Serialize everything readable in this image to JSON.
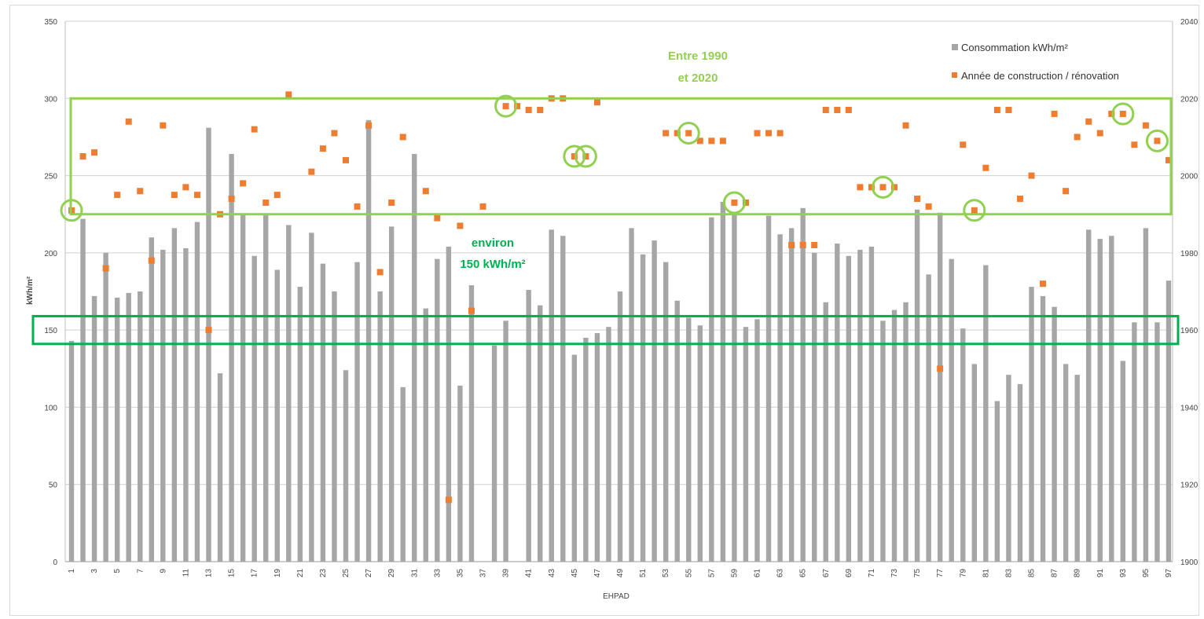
{
  "chart_data": {
    "type": "bar",
    "xlabel": "EHPAD",
    "ylabel": "kWh/m²",
    "ylim": [
      0,
      350
    ],
    "y2lim": [
      1900,
      2040
    ],
    "y_ticks": [
      0,
      50,
      100,
      150,
      200,
      250,
      300,
      350
    ],
    "y2_ticks": [
      1900,
      1920,
      1940,
      1960,
      1980,
      2000,
      2020,
      2040
    ],
    "x_tick_labels": [
      "1",
      "3",
      "5",
      "7",
      "9",
      "11",
      "13",
      "15",
      "17",
      "19",
      "21",
      "23",
      "25",
      "27",
      "29",
      "31",
      "33",
      "35",
      "37",
      "39",
      "41",
      "43",
      "45",
      "47",
      "49",
      "51",
      "53",
      "55",
      "57",
      "59",
      "61",
      "63",
      "65",
      "67",
      "69",
      "71",
      "73",
      "75",
      "77",
      "79",
      "81",
      "83",
      "85",
      "87",
      "89",
      "91",
      "93",
      "95",
      "97"
    ],
    "categories": [
      1,
      2,
      3,
      4,
      5,
      6,
      7,
      8,
      9,
      10,
      11,
      12,
      13,
      14,
      15,
      16,
      17,
      18,
      19,
      20,
      21,
      22,
      23,
      24,
      25,
      26,
      27,
      28,
      29,
      30,
      31,
      32,
      33,
      34,
      35,
      36,
      37,
      38,
      39,
      40,
      41,
      42,
      43,
      44,
      45,
      46,
      47,
      48,
      49,
      50,
      51,
      52,
      53,
      54,
      55,
      56,
      57,
      58,
      59,
      60,
      61,
      62,
      63,
      64,
      65,
      66,
      67,
      68,
      69,
      70,
      71,
      72,
      73,
      74,
      75,
      76,
      77,
      78,
      79,
      80,
      81,
      82,
      83,
      84,
      85,
      86,
      87,
      88,
      89,
      90,
      91,
      92,
      93,
      94,
      95,
      96,
      97
    ],
    "grid": true,
    "legend_position": "top-right",
    "series": [
      {
        "name": "Consommation  kWh/m²",
        "type": "bar",
        "axis": "left",
        "color": "#a6a6a6",
        "values": [
          143,
          222,
          172,
          200,
          171,
          174,
          175,
          210,
          202,
          216,
          203,
          220,
          281,
          122,
          264,
          225,
          198,
          225,
          189,
          218,
          178,
          213,
          193,
          175,
          124,
          194,
          286,
          175,
          217,
          113,
          264,
          164,
          196,
          204,
          114,
          179,
          0,
          140,
          156,
          0,
          176,
          166,
          215,
          211,
          134,
          145,
          148,
          152,
          175,
          216,
          199,
          208,
          194,
          169,
          158,
          153,
          223,
          233,
          226,
          152,
          157,
          224,
          212,
          216,
          229,
          200,
          168,
          206,
          198,
          202,
          204,
          156,
          163,
          168,
          228,
          186,
          226,
          196,
          151,
          128,
          192,
          104,
          121,
          115,
          178,
          172,
          165,
          128,
          121,
          215,
          209,
          211,
          130,
          155,
          216,
          155,
          182
        ]
      },
      {
        "name": "Année de construction / rénovation",
        "type": "scatter",
        "axis": "right",
        "color": "#ed7d31",
        "values": [
          1991,
          2005,
          2006,
          1976,
          1995,
          2014,
          1996,
          1978,
          2013,
          1995,
          1997,
          1995,
          1960,
          1990,
          1994,
          1998,
          2012,
          1993,
          1995,
          2021,
          null,
          2001,
          2007,
          2011,
          2004,
          1992,
          2013,
          1975,
          1993,
          2010,
          null,
          1996,
          1989,
          1916,
          1987,
          1965,
          1992,
          null,
          2018,
          2018,
          2017,
          2017,
          2020,
          2020,
          2005,
          2005,
          2019,
          null,
          null,
          null,
          null,
          null,
          2011,
          2011,
          2011,
          2009,
          2009,
          2009,
          1993,
          1993,
          2011,
          2011,
          2011,
          1982,
          1982,
          1982,
          2017,
          2017,
          2017,
          1997,
          1997,
          1997,
          1997,
          2013,
          1994,
          1992,
          1950,
          null,
          2008,
          1991,
          2002,
          2017,
          2017,
          1994,
          2000,
          1972,
          2016,
          1996,
          2010,
          2014,
          2011,
          2016,
          2016,
          2008,
          2013,
          2009,
          2004
        ]
      }
    ],
    "annotations": {
      "range_label_line1": "Entre 1990",
      "range_label_line2": "et 2020",
      "typical_label_line1": "environ",
      "typical_label_line2": "150 kWh/m²",
      "range_color": "#92d050",
      "typical_color": "#00b050",
      "circled_points": [
        1,
        39,
        46,
        45,
        55,
        59,
        72,
        80,
        93,
        96
      ]
    }
  },
  "legend": {
    "bar_label": "Consommation  kWh/m²",
    "scatter_label": "Année de construction / rénovation"
  }
}
